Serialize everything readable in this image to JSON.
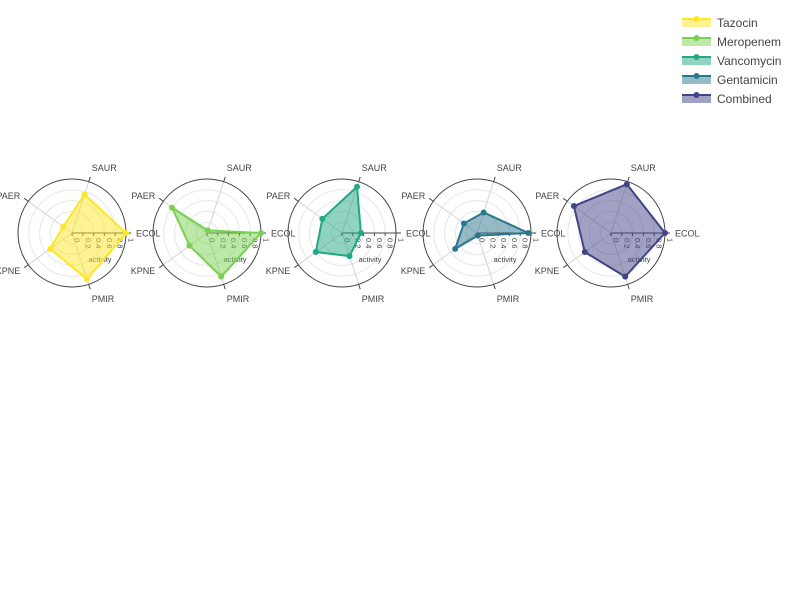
{
  "chart_data": {
    "type": "radar",
    "theta_labels": [
      "ECOL",
      "SAUR",
      "PAER",
      "KPNE",
      "PMIR"
    ],
    "radial_axis_title": "activity",
    "radial_ticks": [
      0,
      0.2,
      0.4,
      0.6,
      0.8,
      1
    ],
    "radial_range": [
      0,
      1
    ],
    "grid": true,
    "legend_position": "top-right",
    "series": [
      {
        "name": "Tazocin",
        "color": "#fde725",
        "values": [
          1.0,
          0.75,
          0.2,
          0.5,
          0.9
        ]
      },
      {
        "name": "Meropenem",
        "color": "#7ad151",
        "values": [
          1.0,
          0.05,
          0.8,
          0.4,
          0.85
        ]
      },
      {
        "name": "Vancomycin",
        "color": "#22a884",
        "values": [
          0.35,
          0.9,
          0.45,
          0.6,
          0.45
        ]
      },
      {
        "name": "Gentamicin",
        "color": "#2a788e",
        "values": [
          0.95,
          0.4,
          0.3,
          0.5,
          0.05
        ]
      },
      {
        "name": "Combined",
        "color": "#414487",
        "values": [
          1.0,
          0.95,
          0.85,
          0.6,
          0.85
        ]
      }
    ]
  }
}
